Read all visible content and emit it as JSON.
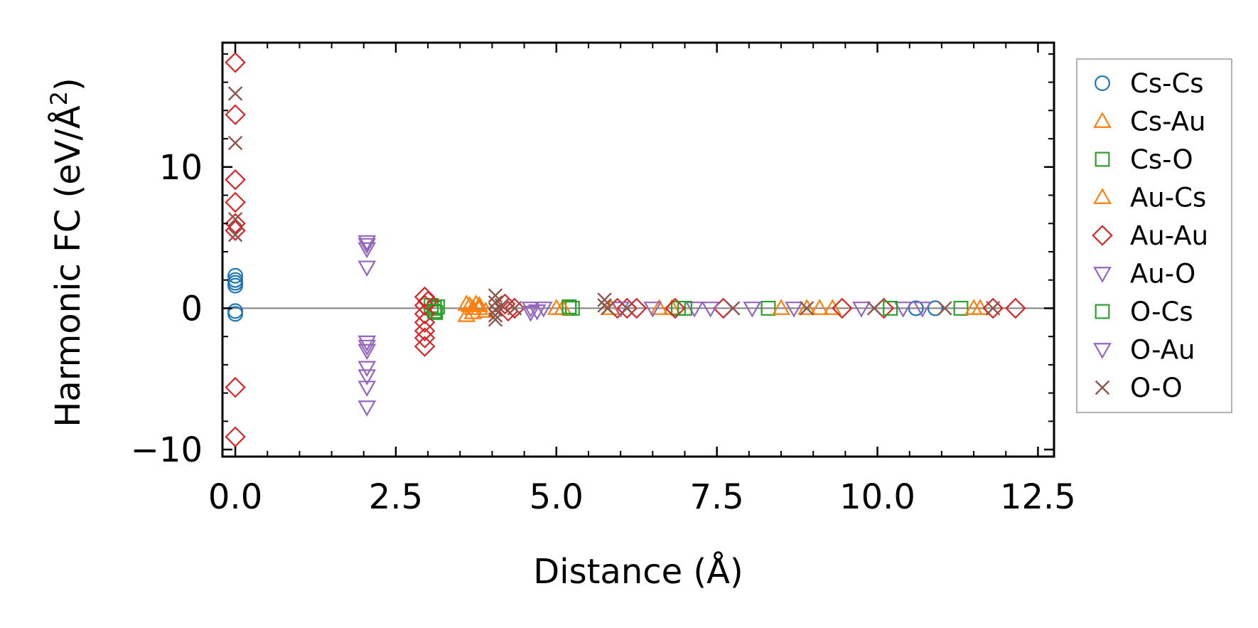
{
  "chart_data": {
    "type": "scatter",
    "title": "",
    "xlabel": "Distance (Å)",
    "ylabel_main": "Harmonic FC (eV/Å",
    "ylabel_sup": "2",
    "ylabel_close": ")",
    "xlim": [
      -0.2,
      12.75
    ],
    "ylim": [
      -10.5,
      18.8
    ],
    "xticks": [
      0.0,
      2.5,
      5.0,
      7.5,
      10.0,
      12.5
    ],
    "xtick_labels": [
      "0.0",
      "2.5",
      "5.0",
      "7.5",
      "10.0",
      "12.5"
    ],
    "yticks": [
      -10,
      0,
      10
    ],
    "ytick_labels": [
      "−10",
      "0",
      "10"
    ],
    "zero_line": true,
    "legend_position": "outside-right",
    "series": [
      {
        "name": "Cs-Cs",
        "marker": "circle",
        "color": "#1f77b4",
        "points": [
          [
            0.0,
            2.3
          ],
          [
            0.0,
            2.0
          ],
          [
            0.0,
            1.8
          ],
          [
            0.0,
            1.6
          ],
          [
            0.0,
            -0.2
          ],
          [
            0.0,
            -0.4
          ],
          [
            10.6,
            0.0
          ],
          [
            10.9,
            0.0
          ]
        ]
      },
      {
        "name": "Cs-Au",
        "marker": "triangle-up",
        "color": "#ff7f0e",
        "points": [
          [
            3.6,
            -0.5
          ],
          [
            3.65,
            0.2
          ],
          [
            3.7,
            -0.3
          ],
          [
            3.75,
            0.3
          ],
          [
            3.8,
            0.0
          ],
          [
            3.9,
            -0.2
          ],
          [
            5.0,
            0.0
          ],
          [
            5.85,
            0.0
          ],
          [
            6.8,
            0.0
          ],
          [
            8.9,
            0.0
          ],
          [
            9.3,
            0.0
          ],
          [
            11.6,
            0.0
          ]
        ]
      },
      {
        "name": "Cs-O",
        "marker": "square",
        "color": "#2ca02c",
        "points": [
          [
            3.05,
            0.2
          ],
          [
            3.1,
            0.0
          ],
          [
            3.12,
            -0.3
          ],
          [
            3.15,
            0.1
          ],
          [
            5.2,
            0.0
          ],
          [
            5.25,
            0.0
          ],
          [
            6.9,
            0.0
          ],
          [
            8.3,
            0.0
          ],
          [
            11.3,
            0.0
          ]
        ]
      },
      {
        "name": "Au-Cs",
        "marker": "triangle-up",
        "color": "#ff7f0e",
        "points": [
          [
            3.6,
            0.3
          ],
          [
            3.7,
            0.0
          ],
          [
            3.8,
            0.2
          ],
          [
            5.1,
            0.0
          ],
          [
            6.6,
            0.0
          ],
          [
            8.5,
            0.0
          ],
          [
            9.1,
            0.0
          ],
          [
            11.5,
            0.0
          ]
        ]
      },
      {
        "name": "Au-Au",
        "marker": "diamond",
        "color": "#d62728",
        "points": [
          [
            0.0,
            17.4
          ],
          [
            0.0,
            13.7
          ],
          [
            0.0,
            9.1
          ],
          [
            0.0,
            7.5
          ],
          [
            0.0,
            6.0
          ],
          [
            0.0,
            5.5
          ],
          [
            0.0,
            -5.6
          ],
          [
            0.0,
            -9.1
          ],
          [
            2.95,
            0.8
          ],
          [
            2.95,
            0.2
          ],
          [
            2.95,
            -0.4
          ],
          [
            2.95,
            -1.0
          ],
          [
            2.95,
            -1.6
          ],
          [
            2.95,
            -2.1
          ],
          [
            2.95,
            -2.7
          ],
          [
            3.0,
            0.5
          ],
          [
            4.2,
            0.3
          ],
          [
            4.25,
            -0.2
          ],
          [
            4.35,
            0.0
          ],
          [
            5.95,
            0.0
          ],
          [
            6.1,
            0.0
          ],
          [
            6.25,
            0.0
          ],
          [
            6.85,
            0.0
          ],
          [
            7.6,
            0.0
          ],
          [
            9.45,
            0.0
          ],
          [
            10.1,
            0.0
          ],
          [
            11.8,
            0.0
          ],
          [
            12.15,
            0.0
          ]
        ]
      },
      {
        "name": "Au-O",
        "marker": "triangle-down",
        "color": "#9467bd",
        "points": [
          [
            2.05,
            4.7
          ],
          [
            2.05,
            4.2
          ],
          [
            2.05,
            2.9
          ],
          [
            2.05,
            -2.4
          ],
          [
            2.05,
            -3.0
          ],
          [
            2.05,
            -4.2
          ],
          [
            2.05,
            -4.8
          ],
          [
            2.05,
            -5.6
          ],
          [
            2.05,
            -7.0
          ],
          [
            4.6,
            0.0
          ],
          [
            4.6,
            -0.3
          ],
          [
            4.8,
            0.0
          ],
          [
            6.0,
            0.0
          ],
          [
            7.15,
            0.0
          ],
          [
            8.05,
            0.0
          ],
          [
            9.75,
            0.0
          ],
          [
            10.4,
            0.0
          ]
        ]
      },
      {
        "name": "O-Cs",
        "marker": "square",
        "color": "#2ca02c",
        "points": [
          [
            3.1,
            -0.2
          ],
          [
            5.2,
            0.1
          ],
          [
            7.0,
            0.0
          ],
          [
            10.2,
            0.0
          ]
        ]
      },
      {
        "name": "O-Au",
        "marker": "triangle-down",
        "color": "#9467bd",
        "points": [
          [
            2.05,
            4.5
          ],
          [
            2.05,
            -2.7
          ],
          [
            4.7,
            -0.2
          ],
          [
            6.5,
            0.0
          ],
          [
            7.4,
            0.0
          ],
          [
            8.7,
            0.0
          ],
          [
            10.7,
            0.0
          ]
        ]
      },
      {
        "name": "O-O",
        "marker": "x",
        "color": "#8c564b",
        "points": [
          [
            0.0,
            15.2
          ],
          [
            0.0,
            11.7
          ],
          [
            0.0,
            6.3
          ],
          [
            0.0,
            5.2
          ],
          [
            4.05,
            0.9
          ],
          [
            4.05,
            0.4
          ],
          [
            4.05,
            -0.1
          ],
          [
            4.05,
            -0.5
          ],
          [
            4.05,
            -0.8
          ],
          [
            4.15,
            0.2
          ],
          [
            4.35,
            0.0
          ],
          [
            5.75,
            0.6
          ],
          [
            5.75,
            0.2
          ],
          [
            5.8,
            0.0
          ],
          [
            6.1,
            0.0
          ],
          [
            7.75,
            0.0
          ],
          [
            8.9,
            0.0
          ],
          [
            9.95,
            0.0
          ],
          [
            11.05,
            0.0
          ],
          [
            11.8,
            0.0
          ]
        ]
      }
    ]
  }
}
